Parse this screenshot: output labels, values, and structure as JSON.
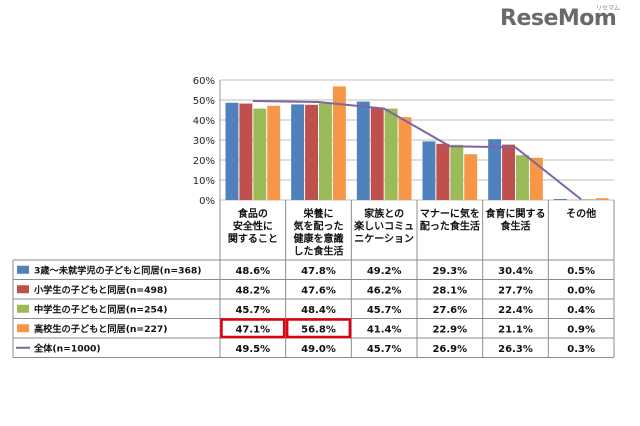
{
  "logo": {
    "text": "ReseMom",
    "sub": "リセマム"
  },
  "chart_data": {
    "type": "bar",
    "categories": [
      [
        "食品の",
        "安全性に",
        "関すること"
      ],
      [
        "栄養に",
        "気を配った",
        "健康を意識",
        "した食生活"
      ],
      [
        "家族との",
        "楽しいコミュ",
        "ニケーション"
      ],
      [
        "マナーに気を",
        "配った食生活"
      ],
      [
        "食育に関する",
        "食生活"
      ],
      [
        "その他"
      ]
    ],
    "ylim": [
      0,
      60
    ],
    "yticks": [
      "0%",
      "10%",
      "20%",
      "30%",
      "40%",
      "50%",
      "60%"
    ],
    "ytick_values": [
      0,
      10,
      20,
      30,
      40,
      50,
      60
    ],
    "grid": true,
    "series": [
      {
        "name": "3歳～未就学児の子どもと同居(n=368)",
        "type": "bar",
        "color": "#4f81bd",
        "values": [
          48.6,
          47.8,
          49.2,
          29.3,
          30.4,
          0.5
        ],
        "labels": [
          "48.6%",
          "47.8%",
          "49.2%",
          "29.3%",
          "30.4%",
          "0.5%"
        ]
      },
      {
        "name": "小学生の子どもと同居(n=498)",
        "type": "bar",
        "color": "#c0504d",
        "values": [
          48.2,
          47.6,
          46.2,
          28.1,
          27.7,
          0.0
        ],
        "labels": [
          "48.2%",
          "47.6%",
          "46.2%",
          "28.1%",
          "27.7%",
          "0.0%"
        ]
      },
      {
        "name": "中学生の子どもと同居(n=254)",
        "type": "bar",
        "color": "#9bbb59",
        "values": [
          45.7,
          48.4,
          45.7,
          27.6,
          22.4,
          0.4
        ],
        "labels": [
          "45.7%",
          "48.4%",
          "45.7%",
          "27.6%",
          "22.4%",
          "0.4%"
        ]
      },
      {
        "name": "高校生の子どもと同居(n=227)",
        "type": "bar",
        "color": "#f79646",
        "values": [
          47.1,
          56.8,
          41.4,
          22.9,
          21.1,
          0.9
        ],
        "labels": [
          "47.1%",
          "56.8%",
          "41.4%",
          "22.9%",
          "21.1%",
          "0.9%"
        ]
      },
      {
        "name": "全体(n=1000)",
        "type": "line",
        "color": "#8064a2",
        "values": [
          49.5,
          49.0,
          45.7,
          26.9,
          26.3,
          0.3
        ],
        "labels": [
          "49.5%",
          "49.0%",
          "45.7%",
          "26.9%",
          "26.3%",
          "0.3%"
        ]
      }
    ],
    "highlight": {
      "series": 3,
      "categories": [
        0,
        1
      ],
      "color": "#e0000f"
    }
  }
}
